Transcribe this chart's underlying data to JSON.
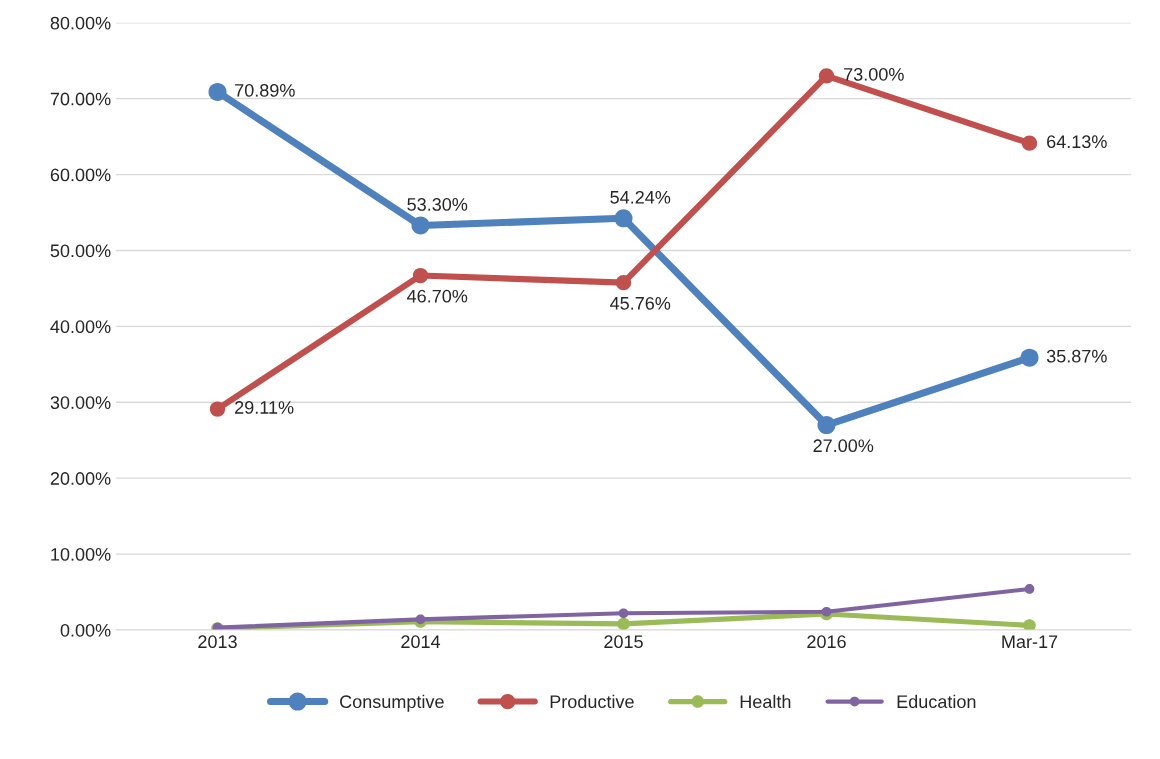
{
  "chart_data": {
    "type": "line",
    "categories": [
      "2013",
      "2014",
      "2015",
      "2016",
      "Mar-17"
    ],
    "series": [
      {
        "name": "Consumptive",
        "color": "#4f81bd",
        "values": [
          70.89,
          53.3,
          54.24,
          27.0,
          35.87
        ],
        "value_labels": [
          "70.89%",
          "53.30%",
          "54.24%",
          "27.00%",
          "35.87%"
        ]
      },
      {
        "name": "Productive",
        "color": "#c0504d",
        "values": [
          29.11,
          46.7,
          45.76,
          73.0,
          64.13
        ],
        "value_labels": [
          "29.11%",
          "46.70%",
          "45.76%",
          "73.00%",
          "64.13%"
        ]
      },
      {
        "name": "Health",
        "color": "#9bbb59",
        "values": [
          0.2,
          1.1,
          0.8,
          2.1,
          0.6
        ]
      },
      {
        "name": "Education",
        "color": "#8064a2",
        "values": [
          0.3,
          1.4,
          2.2,
          2.4,
          5.4
        ]
      }
    ],
    "ylim": [
      0,
      80
    ],
    "yticks": [
      {
        "value": 0,
        "label": "0.00%"
      },
      {
        "value": 10,
        "label": "10.00%"
      },
      {
        "value": 20,
        "label": "20.00%"
      },
      {
        "value": 30,
        "label": "30.00%"
      },
      {
        "value": 40,
        "label": "40.00%"
      },
      {
        "value": 50,
        "label": "50.00%"
      },
      {
        "value": 60,
        "label": "60.00%"
      },
      {
        "value": 70,
        "label": "70.00%"
      },
      {
        "value": 80,
        "label": "80.00%"
      }
    ],
    "grid": "y",
    "legend": "bottom",
    "marker": "circle",
    "line_style": "solid"
  }
}
